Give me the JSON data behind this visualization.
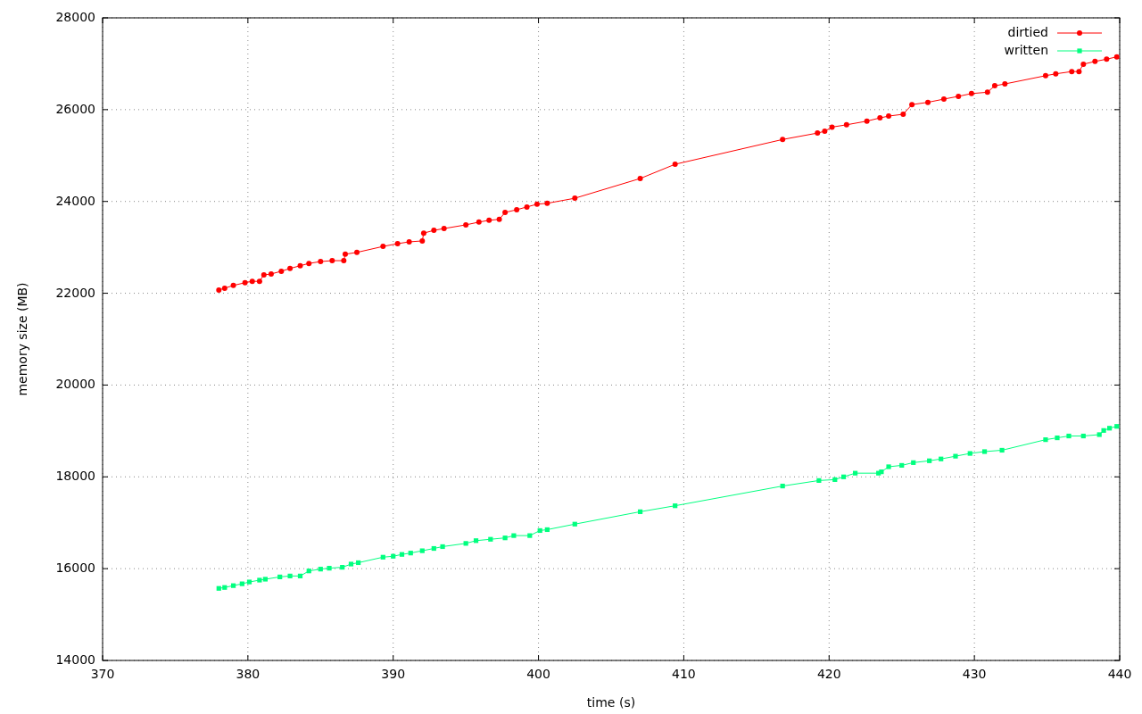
{
  "chart_data": {
    "type": "line",
    "xlabel": "time (s)",
    "ylabel": "memory size (MB)",
    "xlim": [
      370,
      440
    ],
    "xticks": [
      370,
      380,
      390,
      400,
      410,
      420,
      430,
      440
    ],
    "ylim": [
      14000,
      28000
    ],
    "yticks": [
      14000,
      16000,
      18000,
      20000,
      22000,
      24000,
      26000,
      28000
    ],
    "grid": true,
    "legend": "top right",
    "series": [
      {
        "name": "dirtied",
        "color": "#ff0000",
        "marker": "circle",
        "x": [
          378.0,
          378.4,
          379.0,
          379.8,
          380.3,
          380.8,
          381.1,
          381.6,
          382.3,
          382.9,
          383.6,
          384.2,
          385.0,
          385.8,
          386.6,
          386.7,
          387.5,
          389.3,
          390.3,
          391.1,
          392.0,
          392.1,
          392.8,
          393.5,
          395.0,
          395.9,
          396.6,
          397.3,
          397.7,
          398.5,
          399.2,
          399.9,
          400.6,
          402.5,
          407.0,
          409.4,
          416.8,
          419.2,
          419.7,
          420.2,
          421.2,
          422.6,
          423.5,
          424.1,
          425.1,
          425.7,
          426.8,
          427.9,
          428.9,
          429.8,
          430.9,
          431.4,
          432.1,
          434.9,
          435.6,
          436.7,
          437.2,
          437.5,
          438.3,
          439.1,
          439.8
        ],
        "values": [
          22070,
          22110,
          22170,
          22230,
          22260,
          22260,
          22400,
          22420,
          22480,
          22540,
          22600,
          22650,
          22690,
          22710,
          22710,
          22850,
          22890,
          23020,
          23080,
          23120,
          23140,
          23310,
          23370,
          23410,
          23490,
          23550,
          23590,
          23610,
          23760,
          23820,
          23880,
          23940,
          23960,
          24070,
          24500,
          24810,
          25350,
          25490,
          25530,
          25620,
          25670,
          25750,
          25820,
          25860,
          25900,
          26110,
          26160,
          26230,
          26290,
          26350,
          26380,
          26520,
          26560,
          26740,
          26780,
          26830,
          26830,
          26990,
          27050,
          27100,
          27150
        ]
      },
      {
        "name": "written",
        "color": "#00ff7f",
        "marker": "square",
        "x": [
          378.0,
          378.4,
          379.0,
          379.6,
          380.1,
          380.8,
          381.2,
          382.2,
          382.9,
          383.6,
          384.2,
          385.0,
          385.6,
          386.5,
          387.1,
          387.6,
          389.3,
          390.0,
          390.6,
          391.2,
          392.0,
          392.8,
          393.4,
          395.0,
          395.7,
          396.7,
          397.7,
          398.3,
          399.4,
          400.1,
          400.6,
          402.5,
          407.0,
          409.4,
          416.8,
          419.3,
          420.4,
          421.0,
          421.8,
          423.4,
          423.6,
          424.1,
          425.0,
          425.8,
          426.9,
          427.7,
          428.7,
          429.7,
          430.7,
          431.9,
          434.9,
          435.7,
          436.5,
          437.5,
          438.6,
          438.9,
          439.3,
          439.8
        ],
        "values": [
          15570,
          15590,
          15630,
          15670,
          15710,
          15750,
          15770,
          15820,
          15840,
          15840,
          15950,
          15990,
          16010,
          16030,
          16100,
          16130,
          16250,
          16270,
          16310,
          16340,
          16390,
          16440,
          16480,
          16550,
          16610,
          16640,
          16670,
          16720,
          16720,
          16830,
          16850,
          16970,
          17240,
          17370,
          17800,
          17920,
          17940,
          18000,
          18080,
          18080,
          18110,
          18220,
          18250,
          18310,
          18350,
          18390,
          18450,
          18510,
          18550,
          18580,
          18810,
          18850,
          18890,
          18890,
          18920,
          19010,
          19060,
          19100
        ]
      }
    ]
  }
}
